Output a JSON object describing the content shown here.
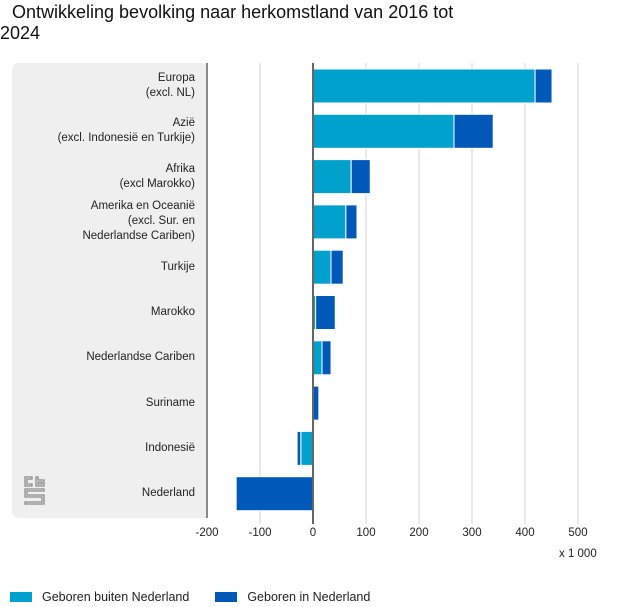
{
  "title": "Ontwikkeling bevolking naar herkomstland van 2016 tot 2024",
  "logo": "cbs-logo-icon",
  "colors": {
    "buiten": "#00a1cd",
    "in": "#0058b8",
    "axis": "#666666",
    "grid": "#d6d6d6",
    "panel": "#efefef"
  },
  "chart_data": {
    "type": "bar",
    "orientation": "horizontal",
    "stacked": true,
    "title": "Ontwikkeling bevolking naar herkomstland van 2016 tot 2024",
    "xlabel": "",
    "ylabel": "",
    "unit_label": "x 1 000",
    "xlim": [
      -200,
      550
    ],
    "xticks": [
      -200,
      -100,
      0,
      100,
      200,
      300,
      400,
      500
    ],
    "xtick_labels": [
      "-200",
      "-100",
      "0",
      "100",
      "200",
      "300",
      "400",
      "500"
    ],
    "grid": true,
    "legend_position": "bottom-left",
    "categories": [
      [
        "Europa",
        "(excl. NL)"
      ],
      [
        "Azië",
        "(excl. Indonesië en Turkije)"
      ],
      [
        "Afrika",
        "(excl Marokko)"
      ],
      [
        "Amerika en Oceanië",
        "(excl. Sur. en",
        "Nederlandse Cariben)"
      ],
      [
        "Turkije"
      ],
      [
        "Marokko"
      ],
      [
        "Nederlandse Cariben"
      ],
      [
        "Suriname"
      ],
      [
        "Indonesië"
      ],
      [
        "Nederland"
      ]
    ],
    "series": [
      {
        "name": "Geboren buiten Nederland",
        "color": "#00a1cd",
        "values": [
          419,
          266,
          72,
          62,
          34,
          5,
          17,
          0,
          -23,
          0
        ]
      },
      {
        "name": "Geboren in Nederland",
        "color": "#0058b8",
        "values": [
          32,
          74,
          36,
          21,
          23,
          37,
          17,
          11,
          -7,
          -145
        ]
      }
    ]
  },
  "legend": [
    {
      "label": "Geboren buiten Nederland",
      "color": "#00a1cd"
    },
    {
      "label": "Geboren in Nederland",
      "color": "#0058b8"
    }
  ]
}
